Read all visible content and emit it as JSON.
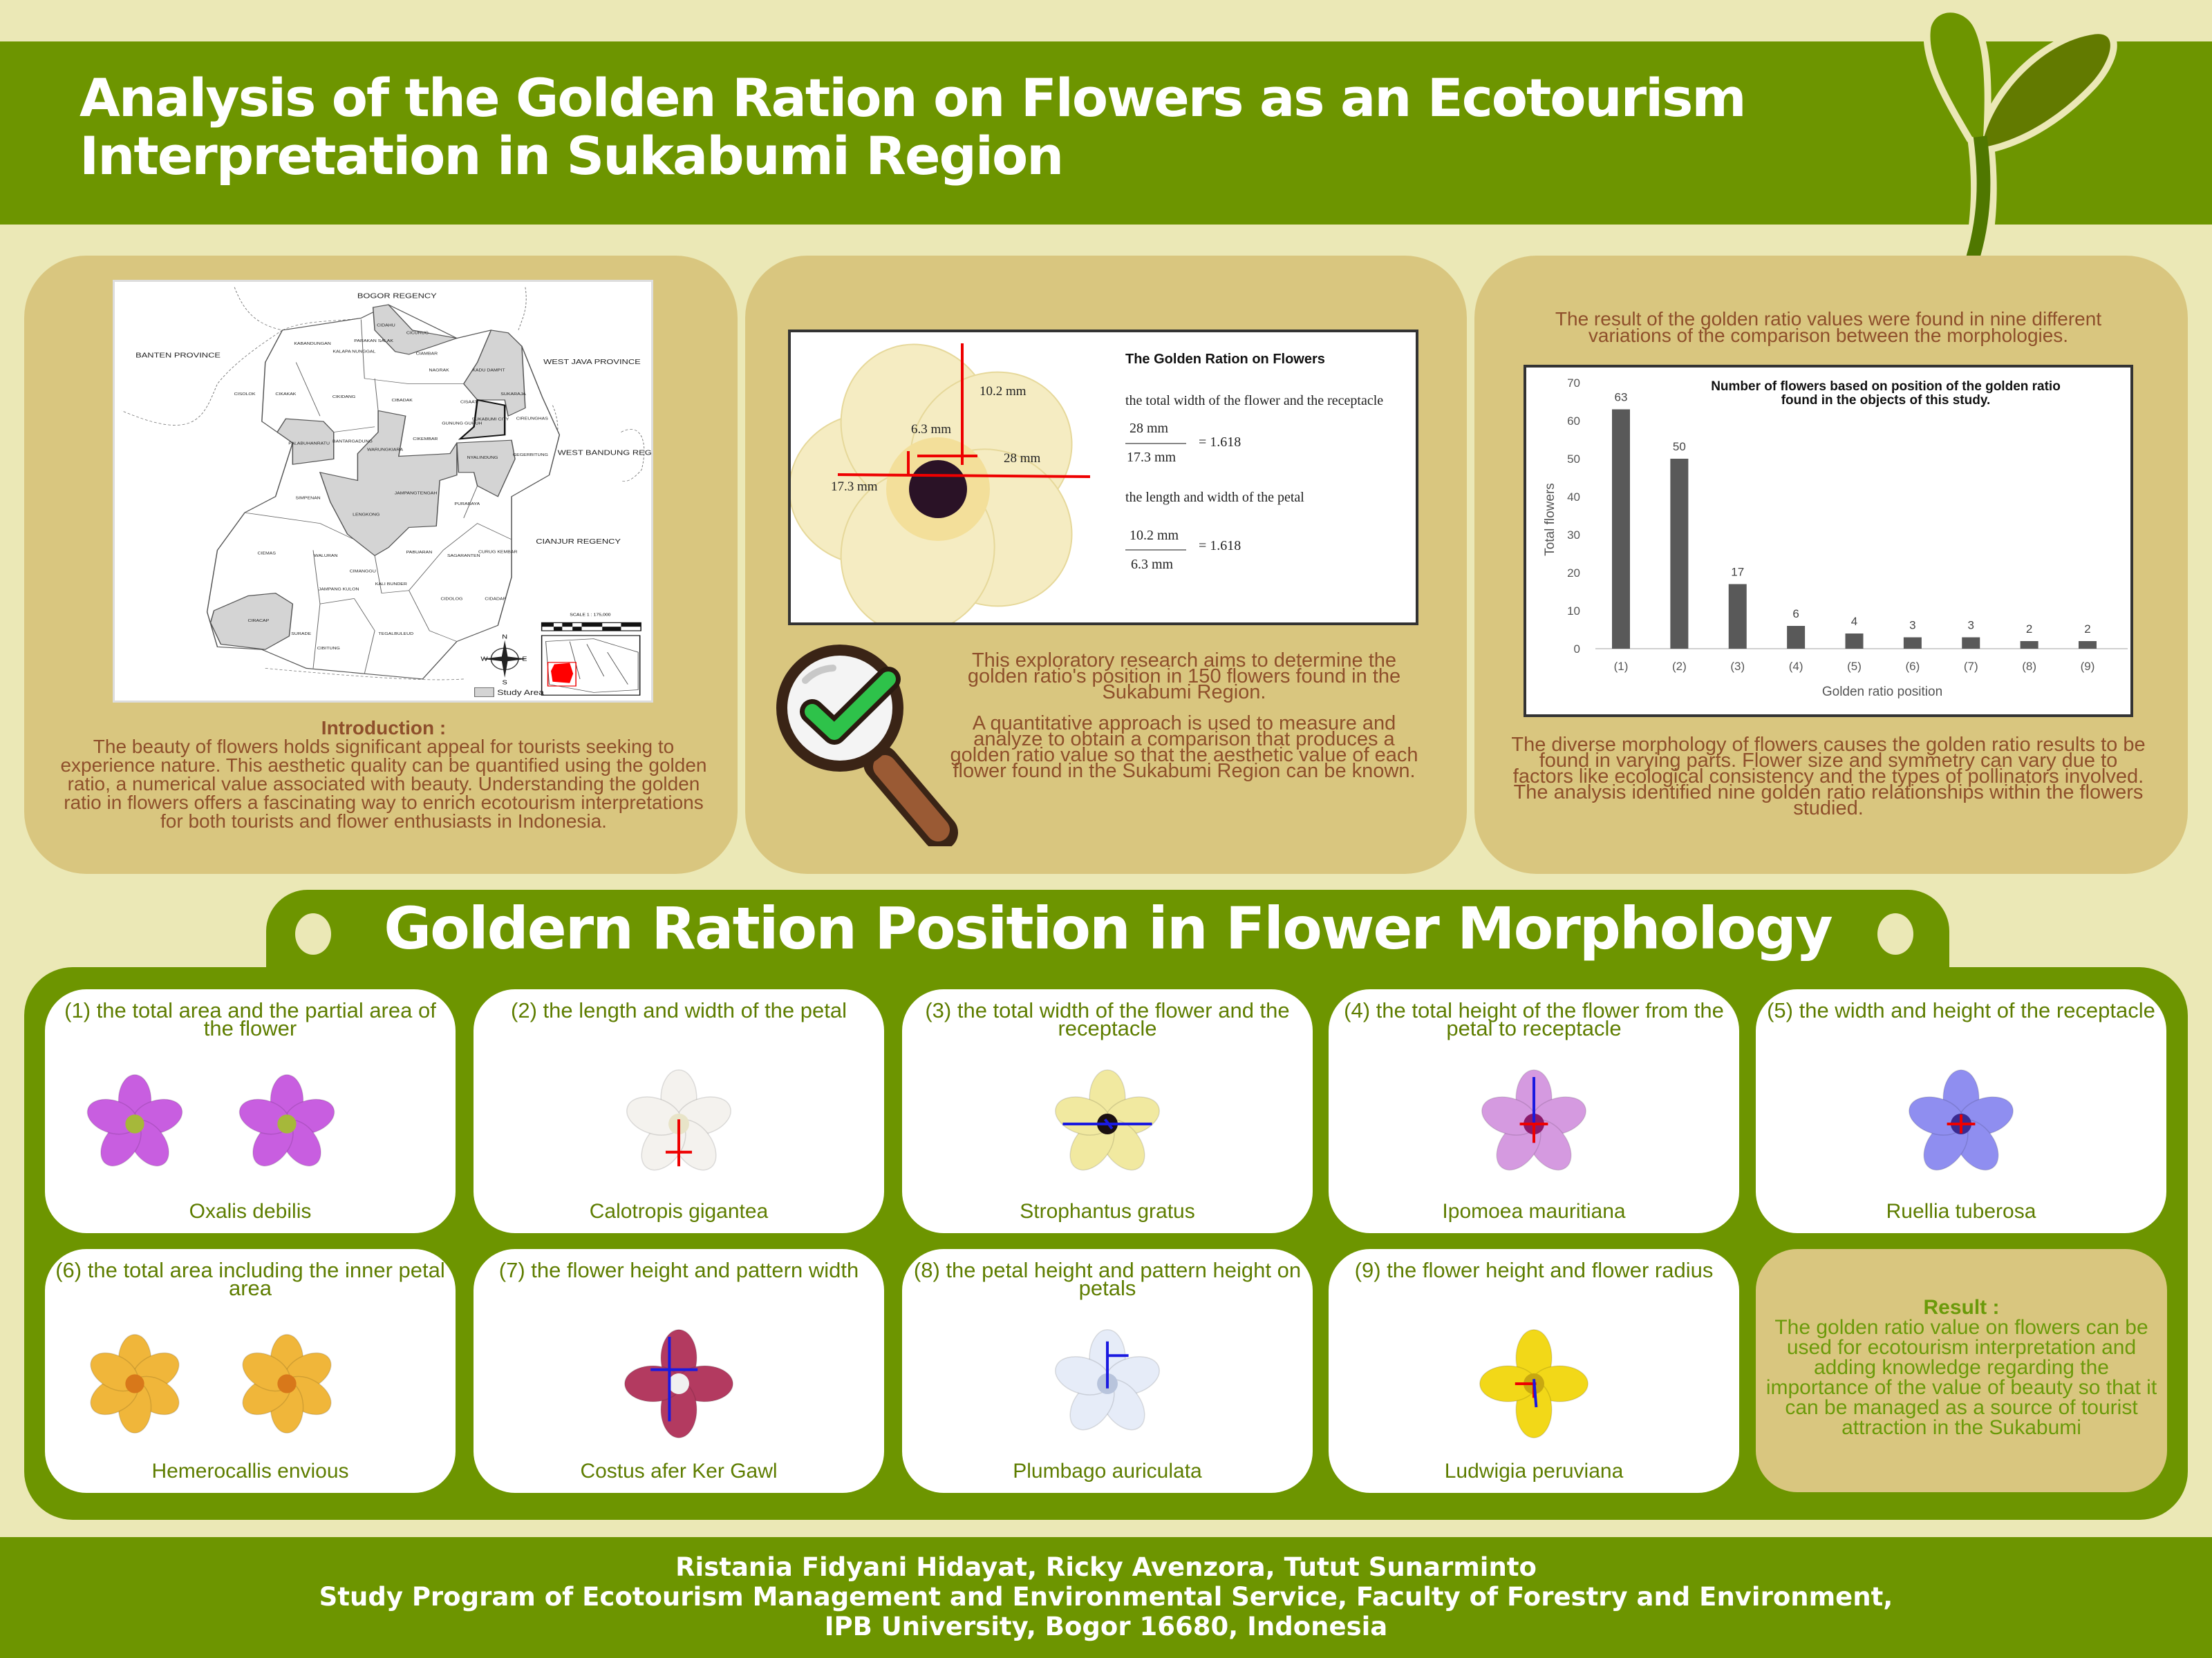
{
  "header": {
    "title_line1": "Analysis of the Golden Ration on Flowers as an Ecotourism",
    "title_line2": "Interpretation in Sukabumi Region"
  },
  "colors": {
    "green": "#6d9500",
    "tan": "#d9c67f",
    "cream": "#ebe8b6",
    "brown_text": "#8e4f2b",
    "card_text": "#5e7d00"
  },
  "map": {
    "regions": [
      "BOGOR REGENCY",
      "BANTEN PROVINCE",
      "WEST JAVA PROVINCE",
      "WEST BANDUNG REGENCY",
      "CIANJUR REGENCY"
    ],
    "districts": [
      "CIDAHU",
      "CICURUG",
      "KABANDUNGAN",
      "PARAKAN SALAK",
      "KALAPA NUNGGAL",
      "CIAMBAR",
      "NAGRAK",
      "KADU DAMPIT",
      "SUKARAJA",
      "CISOLOK",
      "CIKAKAK",
      "CIKIDANG",
      "CIBADAK",
      "CISAAT",
      "SUKABUMI CITY",
      "CIREUNGHAS",
      "PALABUHANRATU",
      "BANTARGADUNG",
      "WARUNGKIARA",
      "CIKEMBAR",
      "NYALINDUNG",
      "GEGERBITUNG",
      "SIMPENAN",
      "JAMPANGTENGAH",
      "LENGKONG",
      "PURABAYA",
      "CIEMAS",
      "WALURAN",
      "PABUARAN",
      "SAGARANTEN",
      "CURUG KEMBAR",
      "CIMANGGU",
      "JAMPANG KULON",
      "KALI BUNDER",
      "CIDOLOG",
      "CIDADAP",
      "CIRACAP",
      "SURADE",
      "TEGALBULEUD",
      "CIBITUNG",
      "GUNUNG GURUH"
    ],
    "legend": "Study Area",
    "scale": "SCALE 1 : 175,000",
    "compass": [
      "N",
      "S",
      "W",
      "E"
    ]
  },
  "intro": {
    "heading": "Introduction :",
    "text": "The beauty of flowers holds significant appeal for tourists seeking to experience nature. This aesthetic quality can be quantified using the golden ratio, a numerical value associated with beauty. Understanding the golden ratio in flowers offers a fascinating way to enrich ecotourism interpretations for both tourists and flower enthusiasts in Indonesia."
  },
  "figure": {
    "title": "The Golden Ration on Flowers",
    "labels": {
      "top": "10.2 mm",
      "petal_width": "6.3 mm",
      "width": "28 mm",
      "receptacle": "17.3 mm"
    },
    "ratio1": {
      "caption": "the total width of the flower and the receptacle",
      "numerator": "28 mm",
      "denominator": "17.3 mm",
      "result": "= 1.618"
    },
    "ratio2": {
      "caption": "the length and width of the petal",
      "numerator": "10.2 mm",
      "denominator": "6.3 mm",
      "result": "= 1.618"
    }
  },
  "method": {
    "p1": "This exploratory research aims to determine the golden ratio's position in 150 flowers found in the Sukabumi Region.",
    "p2": "A quantitative approach is used to measure and analyze to obtain a comparison that produces a golden ratio value so that the aesthetic value of each flower found in the Sukabumi Region can be known."
  },
  "results_panel": {
    "top_text": "The result of the golden ratio values were found in nine different variations of the comparison between the morphologies.",
    "bottom_text": "The diverse morphology of flowers causes the golden ratio results to be found in varying parts. Flower size and symmetry can vary due to factors like ecological consistency and the types of pollinators involved. The analysis identified nine golden ratio relationships within the flowers studied."
  },
  "chart_data": {
    "type": "bar",
    "title": "Number of flowers based on position of the golden ratio found in the objects of this study.",
    "xlabel": "Golden ratio position",
    "ylabel": "Total flowers",
    "categories": [
      "(1)",
      "(2)",
      "(3)",
      "(4)",
      "(5)",
      "(6)",
      "(7)",
      "(8)",
      "(9)"
    ],
    "values": [
      63,
      50,
      17,
      6,
      4,
      3,
      3,
      2,
      2
    ],
    "ylim": [
      0,
      70
    ],
    "yticks": [
      0,
      10,
      20,
      30,
      40,
      50,
      60,
      70
    ],
    "data_labels": true,
    "grid": false,
    "bar_color": "#595959"
  },
  "section": {
    "title": "Goldern Ration Position in Flower Morphology"
  },
  "cards": [
    {
      "title": "(1) the total area and the partial area of the flower",
      "species": "Oxalis debilis",
      "petal_color": "#c85ee0",
      "center_color": "#a6b83a",
      "petals": 5,
      "count": 2
    },
    {
      "title": "(2) the length and width of the petal",
      "species": "Calotropis gigantea",
      "petal_color": "#f4f2ee",
      "center_color": "#e8e4c8",
      "petals": 5,
      "count": 1
    },
    {
      "title": "(3) the total width of the flower and the receptacle",
      "species": "Strophantus gratus",
      "petal_color": "#f1e9a0",
      "center_color": "#1b1010",
      "petals": 5,
      "count": 1
    },
    {
      "title": "(4) the total height of the flower from the petal to receptacle",
      "species": "Ipomoea mauritiana",
      "petal_color": "#d59ae0",
      "center_color": "#8a1a6a",
      "petals": 5,
      "count": 1
    },
    {
      "title": "(5) the width and height of the receptacle",
      "species": "Ruellia tuberosa",
      "petal_color": "#8f8ef0",
      "center_color": "#3a2a90",
      "petals": 5,
      "count": 1
    },
    {
      "title": "(6) the total area including the inner petal area",
      "species": "Hemerocallis envious",
      "petal_color": "#f0b63a",
      "center_color": "#d8781a",
      "petals": 6,
      "count": 2
    },
    {
      "title": "(7) the flower height and pattern width",
      "species": "Costus afer Ker Gawl",
      "petal_color": "#b33a60",
      "center_color": "#f0f0f0",
      "petals": 4,
      "count": 1
    },
    {
      "title": "(8) the petal height and pattern height on petals",
      "species": "Plumbago auriculata",
      "petal_color": "#e6ecf8",
      "center_color": "#b8c4dc",
      "petals": 5,
      "count": 1
    },
    {
      "title": "(9) the flower height and flower radius",
      "species": "Ludwigia peruviana",
      "petal_color": "#f2d818",
      "center_color": "#c8a810",
      "petals": 4,
      "count": 1
    }
  ],
  "result": {
    "heading": "Result :",
    "text": "The golden ratio value on flowers can be used for ecotourism interpretation and adding knowledge regarding the importance of the value of beauty so that it can be managed as a source of tourist attraction in the Sukabumi"
  },
  "footer": {
    "authors": "Ristania Fidyani Hidayat, Ricky Avenzora, Tutut Sunarminto",
    "affiliation1": "Study Program of Ecotourism Management and Environmental Service, Faculty of Forestry and Environment,",
    "affiliation2": "IPB University, Bogor 16680, Indonesia"
  }
}
